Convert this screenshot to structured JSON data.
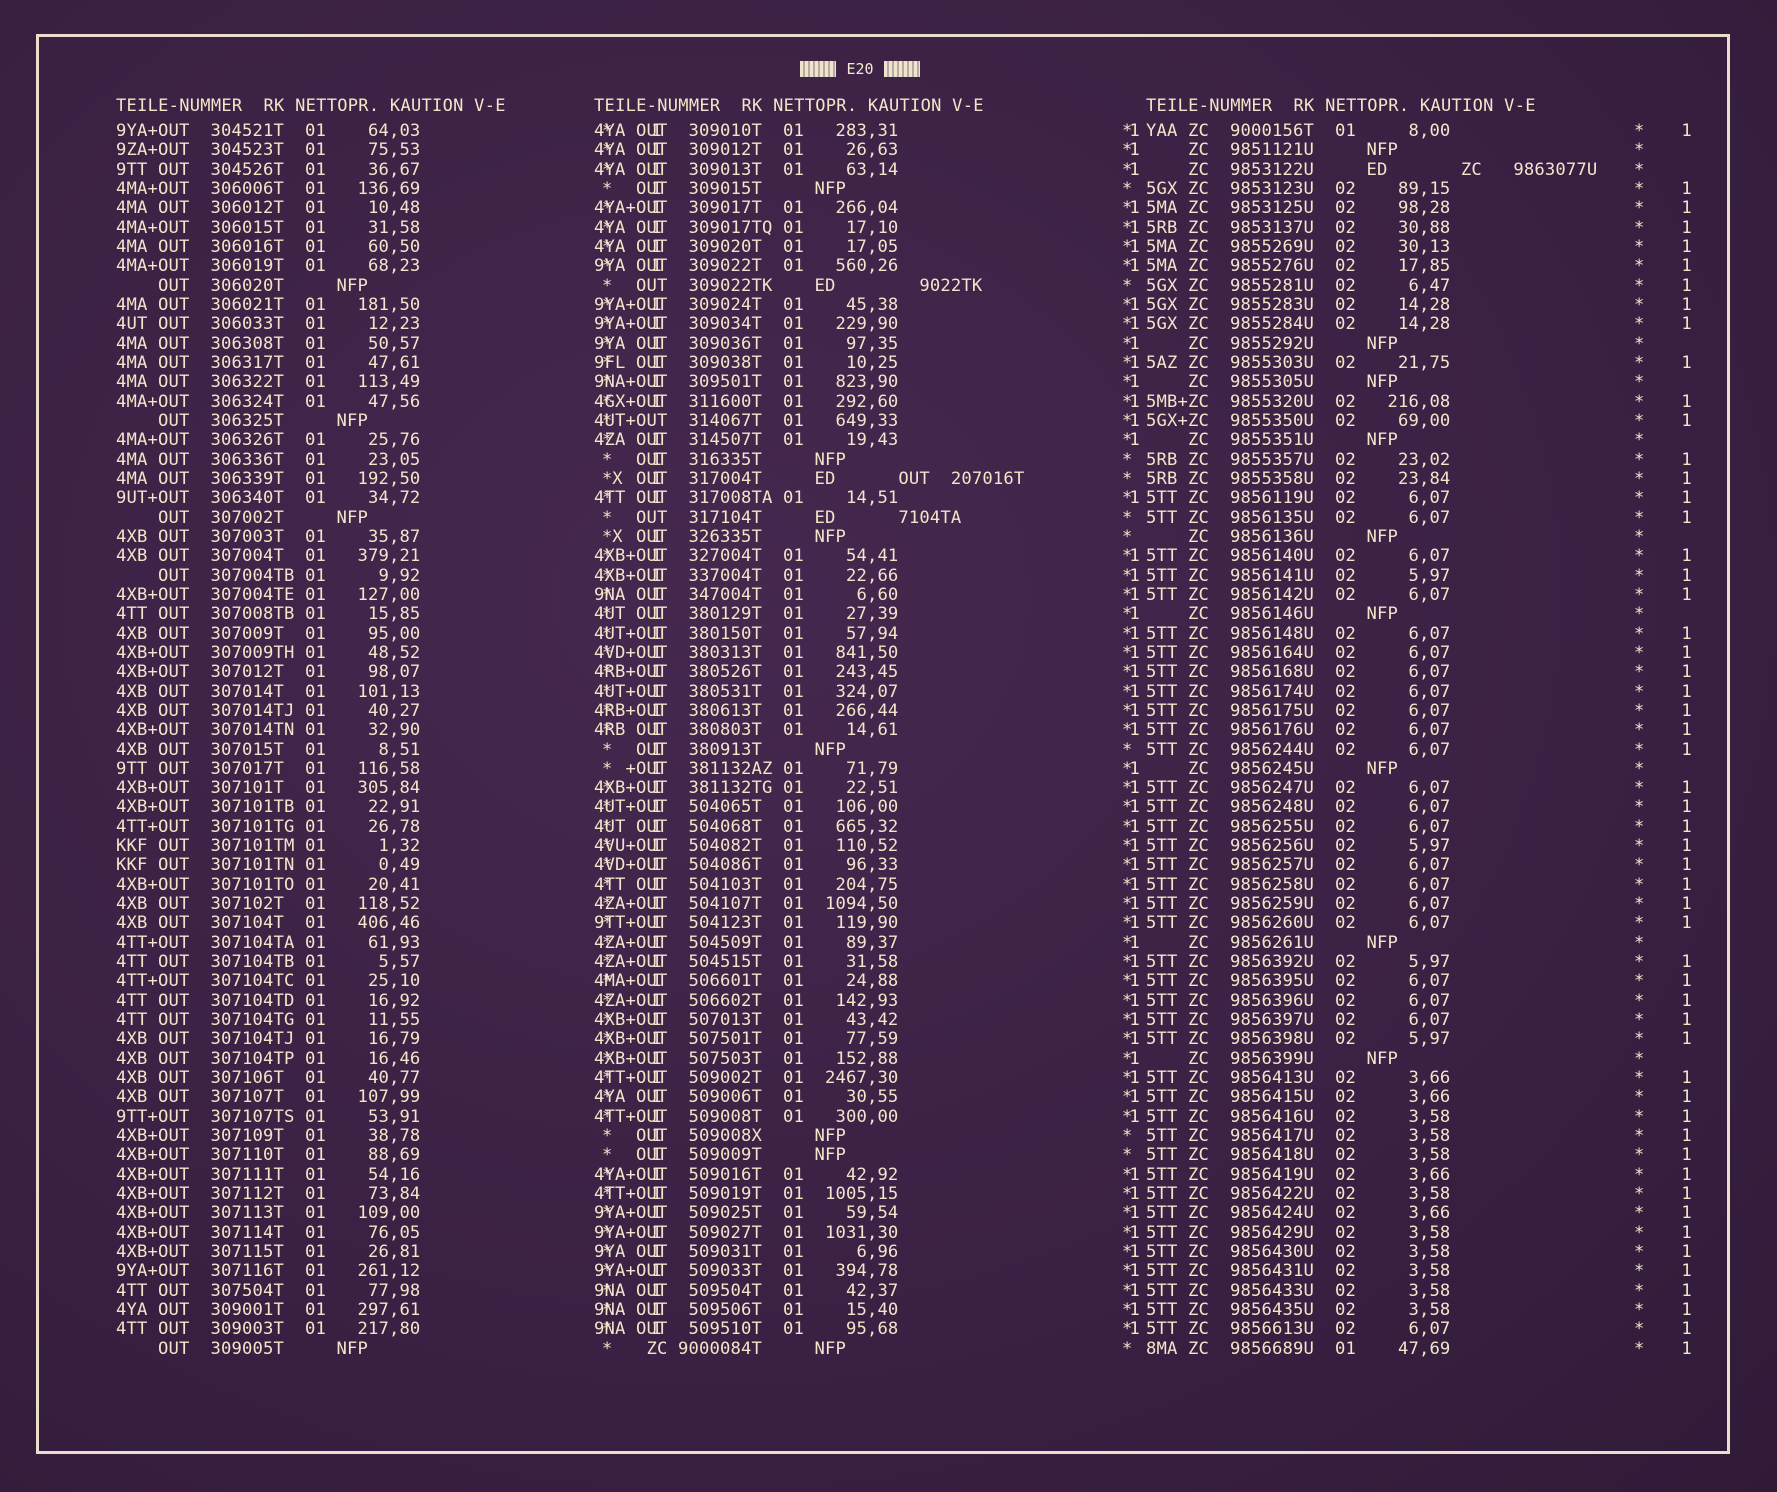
{
  "header": {
    "label": "E20"
  },
  "columns": [
    {
      "heading": "TEILE-NUMMER  RK NETTOPR. KAUTION V-E",
      "rows": [
        "9YA+OUT  304521T  01    64,03                      1",
        "9ZA+OUT  304523T  01    75,53                      1",
        "9TT OUT  304526T  01    36,67                      1",
        "4MA+OUT  306006T  01   136,69                      1",
        "4MA OUT  306012T  01    10,48                      1",
        "4MA+OUT  306015T  01    31,58                      1",
        "4MA OUT  306016T  01    60,50                      1",
        "4MA+OUT  306019T  01    68,23                      1",
        "    OUT  306020T     NFP",
        "4MA OUT  306021T  01   181,50                      1",
        "4UT OUT  306033T  01    12,23                      1",
        "4MA OUT  306308T  01    50,57                      1",
        "4MA OUT  306317T  01    47,61                      1",
        "4MA OUT  306322T  01   113,49                      1",
        "4MA+OUT  306324T  01    47,56                      1",
        "    OUT  306325T     NFP",
        "4MA+OUT  306326T  01    25,76                      1",
        "4MA OUT  306336T  01    23,05                      1",
        "4MA OUT  306339T  01   192,50                      1",
        "9UT+OUT  306340T  01    34,72                      1",
        "    OUT  307002T     NFP",
        "4XB OUT  307003T  01    35,87                      1",
        "4XB OUT  307004T  01   379,21                      1",
        "    OUT  307004TB 01     9,92                      1",
        "4XB+OUT  307004TE 01   127,00                      1",
        "4TT OUT  307008TB 01    15,85                      1",
        "4XB OUT  307009T  01    95,00                      1",
        "4XB+OUT  307009TH 01    48,52                      1",
        "4XB+OUT  307012T  01    98,07                      1",
        "4XB OUT  307014T  01   101,13                      1",
        "4XB OUT  307014TJ 01    40,27                      1",
        "4XB+OUT  307014TN 01    32,90                      1",
        "4XB OUT  307015T  01     8,51                      1",
        "9TT OUT  307017T  01   116,58                      1",
        "4XB+OUT  307101T  01   305,84                      1",
        "4XB+OUT  307101TB 01    22,91                      1",
        "4TT+OUT  307101TG 01    26,78                      1",
        "KKF OUT  307101TM 01     1,32                      1",
        "KKF OUT  307101TN 01     0,49                      1",
        "4XB+OUT  307101TO 01    20,41                      1",
        "4XB OUT  307102T  01   118,52                      1",
        "4XB OUT  307104T  01   406,46                      1",
        "4TT+OUT  307104TA 01    61,93                      1",
        "4TT OUT  307104TB 01     5,57                      1",
        "4TT+OUT  307104TC 01    25,10                      1",
        "4TT OUT  307104TD 01    16,92                      1",
        "4TT OUT  307104TG 01    11,55                      1",
        "4XB OUT  307104TJ 01    16,79                      1",
        "4XB OUT  307104TP 01    16,46                      1",
        "4XB OUT  307106T  01    40,77                      1",
        "4XB OUT  307107T  01   107,99                      1",
        "9TT+OUT  307107TS 01    53,91                      1",
        "4XB+OUT  307109T  01    38,78                      1",
        "4XB+OUT  307110T  01    88,69                      1",
        "4XB+OUT  307111T  01    54,16                      1",
        "4XB+OUT  307112T  01    73,84                      1",
        "4XB+OUT  307113T  01   109,00                      1",
        "4XB+OUT  307114T  01    76,05                      1",
        "4XB+OUT  307115T  01    26,81                      1",
        "9YA+OUT  307116T  01   261,12                      1",
        "4TT OUT  307504T  01    77,98                      1",
        "4YA OUT  309001T  01   297,61                      1",
        "4TT OUT  309003T  01   217,80                      1",
        "    OUT  309005T     NFP"
      ]
    },
    {
      "heading": "TEILE-NUMMER  RK NETTOPR. KAUTION V-E",
      "rows": [
        "4YA OUT  309010T  01   283,31                      1",
        "4YA OUT  309012T  01    26,63                      1",
        "4YA OUT  309013T  01    63,14                      1",
        "    OUT  309015T     NFP",
        "4YA+OUT  309017T  01   266,04                      1",
        "4YA OUT  309017TQ 01    17,10                      1",
        "4YA OUT  309020T  01    17,05                      1",
        "9YA OUT  309022T  01   560,26                      1",
        "    OUT  309022TK    ED        9022TK",
        "9YA+OUT  309024T  01    45,38                      1",
        "9YA+OUT  309034T  01   229,90                      1",
        "9YA OUT  309036T  01    97,35                      1",
        "9FL OUT  309038T  01    10,25                      1",
        "9NA+OUT  309501T  01   823,90                      1",
        "4GX+OUT  311600T  01   292,60                      1",
        "4UT+OUT  314067T  01   649,33                      1",
        "4ZA OUT  314507T  01    19,43                      1",
        "    OUT  316335T     NFP",
        "    OUT  317004T     ED      OUT  207016T",
        "4TT OUT  317008TA 01    14,51                      1",
        "    OUT  317104T     ED      7104TA",
        "    OUT  326335T     NFP",
        "4XB+OUT  327004T  01    54,41                      1",
        "4XB+OUT  337004T  01    22,66                      1",
        "9NA OUT  347004T  01     6,60                      1",
        "4UT OUT  380129T  01    27,39                      1",
        "4UT+OUT  380150T  01    57,94                      1",
        "4VD+OUT  380313T  01   841,50                      1",
        "4RB+OUT  380526T  01   243,45                      1",
        "4UT+OUT  380531T  01   324,07                      1",
        "4RB+OUT  380613T  01   266,44                      1",
        "4RB OUT  380803T  01    14,61                      1",
        "    OUT  380913T     NFP",
        "   +OUT  381132AZ 01    71,79                      1",
        "4XB+OUT  381132TG 01    22,51                      1",
        "4UT+OUT  504065T  01   106,00                      1",
        "4UT OUT  504068T  01   665,32                      1",
        "4VU+OUT  504082T  01   110,52                      1",
        "4VD+OUT  504086T  01    96,33                      1",
        "4TT OUT  504103T  01   204,75                      1",
        "4ZA+OUT  504107T  01  1094,50                      1",
        "9TT+OUT  504123T  01   119,90                      1",
        "4ZA+OUT  504509T  01    89,37                      1",
        "4ZA+OUT  504515T  01    31,58                      1",
        "4MA+OUT  506601T  01    24,88                      1",
        "4ZA+OUT  506602T  01   142,93                      1",
        "4XB+OUT  507013T  01    43,42                      1",
        "4XB+OUT  507501T  01    77,59                      1",
        "4XB+OUT  507503T  01   152,88                      1",
        "4TT+OUT  509002T  01  2467,30                      1",
        "4YA OUT  509006T  01    30,55                      1",
        "4TT+OUT  509008T  01   300,00                      1",
        "    OUT  509008X     NFP",
        "    OUT  509009T     NFP",
        "4YA+OUT  509016T  01    42,92                      1",
        "4TT+OUT  509019T  01  1005,15                      1",
        "9YA+OUT  509025T  01    59,54                      1",
        "9YA+OUT  509027T  01  1031,30                      1",
        "9YA OUT  509031T  01     6,96                      1",
        "9YA+OUT  509033T  01   394,78                      1",
        "9NA OUT  509504T  01    42,37                      1",
        "9NA OUT  509506T  01    15,40                      1",
        "9NA OUT  509510T  01    95,68                      1",
        "     ZC 9000084T     NFP"
      ]
    },
    {
      "heading": "TEILE-NUMMER  RK NETTOPR. KAUTION V-E",
      "rows": [
        "YAA ZC  9000156T  01     8,00                      1",
        "    ZC  9851121U     NFP",
        "    ZC  9853122U     ED       ZC   9863077U",
        "5GX ZC  9853123U  02    89,15                      1",
        "5MA ZC  9853125U  02    98,28                      1",
        "5RB ZC  9853137U  02    30,88                      1",
        "5MA ZC  9855269U  02    30,13                      1",
        "5MA ZC  9855276U  02    17,85                      1",
        "5GX ZC  9855281U  02     6,47                      1",
        "5GX ZC  9855283U  02    14,28                      1",
        "5GX ZC  9855284U  02    14,28                      1",
        "    ZC  9855292U     NFP",
        "5AZ ZC  9855303U  02    21,75                      1",
        "    ZC  9855305U     NFP",
        "5MB+ZC  9855320U  02   216,08                      1",
        "5GX+ZC  9855350U  02    69,00                      1",
        "    ZC  9855351U     NFP",
        "5RB ZC  9855357U  02    23,02                      1",
        "5RB ZC  9855358U  02    23,84                      1",
        "5TT ZC  9856119U  02     6,07                      1",
        "5TT ZC  9856135U  02     6,07                      1",
        "    ZC  9856136U     NFP",
        "5TT ZC  9856140U  02     6,07                      1",
        "5TT ZC  9856141U  02     5,97                      1",
        "5TT ZC  9856142U  02     6,07                      1",
        "    ZC  9856146U     NFP",
        "5TT ZC  9856148U  02     6,07                      1",
        "5TT ZC  9856164U  02     6,07                      1",
        "5TT ZC  9856168U  02     6,07                      1",
        "5TT ZC  9856174U  02     6,07                      1",
        "5TT ZC  9856175U  02     6,07                      1",
        "5TT ZC  9856176U  02     6,07                      1",
        "5TT ZC  9856244U  02     6,07                      1",
        "    ZC  9856245U     NFP",
        "5TT ZC  9856247U  02     6,07                      1",
        "5TT ZC  9856248U  02     6,07                      1",
        "5TT ZC  9856255U  02     6,07                      1",
        "5TT ZC  9856256U  02     5,97                      1",
        "5TT ZC  9856257U  02     6,07                      1",
        "5TT ZC  9856258U  02     6,07                      1",
        "5TT ZC  9856259U  02     6,07                      1",
        "5TT ZC  9856260U  02     6,07                      1",
        "    ZC  9856261U     NFP",
        "5TT ZC  9856392U  02     5,97                      1",
        "5TT ZC  9856395U  02     6,07                      1",
        "5TT ZC  9856396U  02     6,07                      1",
        "5TT ZC  9856397U  02     6,07                      1",
        "5TT ZC  9856398U  02     5,97                      1",
        "    ZC  9856399U     NFP",
        "5TT ZC  9856413U  02     3,66                      1",
        "5TT ZC  9856415U  02     3,66                      1",
        "5TT ZC  9856416U  02     3,58                      1",
        "5TT ZC  9856417U  02     3,58                      1",
        "5TT ZC  9856418U  02     3,58                      1",
        "5TT ZC  9856419U  02     3,66                      1",
        "5TT ZC  9856422U  02     3,58                      1",
        "5TT ZC  9856424U  02     3,66                      1",
        "5TT ZC  9856429U  02     3,58                      1",
        "5TT ZC  9856430U  02     3,58                      1",
        "5TT ZC  9856431U  02     3,58                      1",
        "5TT ZC  9856433U  02     3,58                      1",
        "5TT ZC  9856435U  02     3,58                      1",
        "5TT ZC  9856613U  02     6,07                      1",
        "8MA ZC  9856689U  01    47,69                      1"
      ]
    }
  ],
  "stars": {
    "col1": [
      "*",
      "*",
      "*",
      "*",
      "*",
      "*",
      "*",
      "*",
      "*",
      "*",
      "*",
      "*",
      "*",
      "*",
      "*",
      "*",
      "*",
      "*",
      "*X",
      "*",
      "*",
      "*X",
      "*",
      "*",
      "*",
      "*",
      "*",
      "*",
      "*",
      "*",
      "*",
      "*",
      "*",
      "*",
      "*",
      "*",
      "*",
      "*",
      "*",
      "*",
      "*",
      "*",
      "*",
      "*",
      "*",
      "*",
      "*",
      "*",
      "*",
      "*",
      "*",
      "*",
      "*",
      "*",
      "*",
      "*",
      "*",
      "*",
      "*",
      "*",
      "*",
      "*",
      "*",
      "*"
    ],
    "col2": [
      "*",
      "*",
      "*",
      "*",
      "*",
      "*",
      "*",
      "*",
      "*",
      "*",
      "*",
      "*",
      "*",
      "*",
      "*",
      "*",
      "*",
      "*",
      "*",
      "*",
      "*",
      "*",
      "*",
      "*",
      "*",
      "*",
      "*",
      "*",
      "*",
      "*",
      "*",
      "*",
      "*",
      "*",
      "*",
      "*",
      "*",
      "*",
      "*",
      "*",
      "*",
      "*",
      "*",
      "*",
      "*",
      "*",
      "*",
      "*",
      "*",
      "*",
      "*",
      "*",
      "*",
      "*",
      "*",
      "*",
      "*",
      "*",
      "*",
      "*",
      "*",
      "*",
      "*",
      "*"
    ],
    "col3": [
      "*",
      "*",
      "*",
      "*",
      "*",
      "*",
      "*",
      "*",
      "*",
      "*",
      "*",
      "*",
      "*",
      "*",
      "*",
      "*",
      "*",
      "*",
      "*",
      "*",
      "*",
      "*",
      "*",
      "*",
      "*",
      "*",
      "*",
      "*",
      "*",
      "*",
      "*",
      "*",
      "*",
      "*",
      "*",
      "*",
      "*",
      "*",
      "*",
      "*",
      "*",
      "*",
      "*",
      "*",
      "*",
      "*",
      "*",
      "*",
      "*",
      "*",
      "*",
      "*",
      "*",
      "*",
      "*",
      "*",
      "*",
      "*",
      "*",
      "*",
      "*",
      "*",
      "*",
      "*"
    ]
  }
}
